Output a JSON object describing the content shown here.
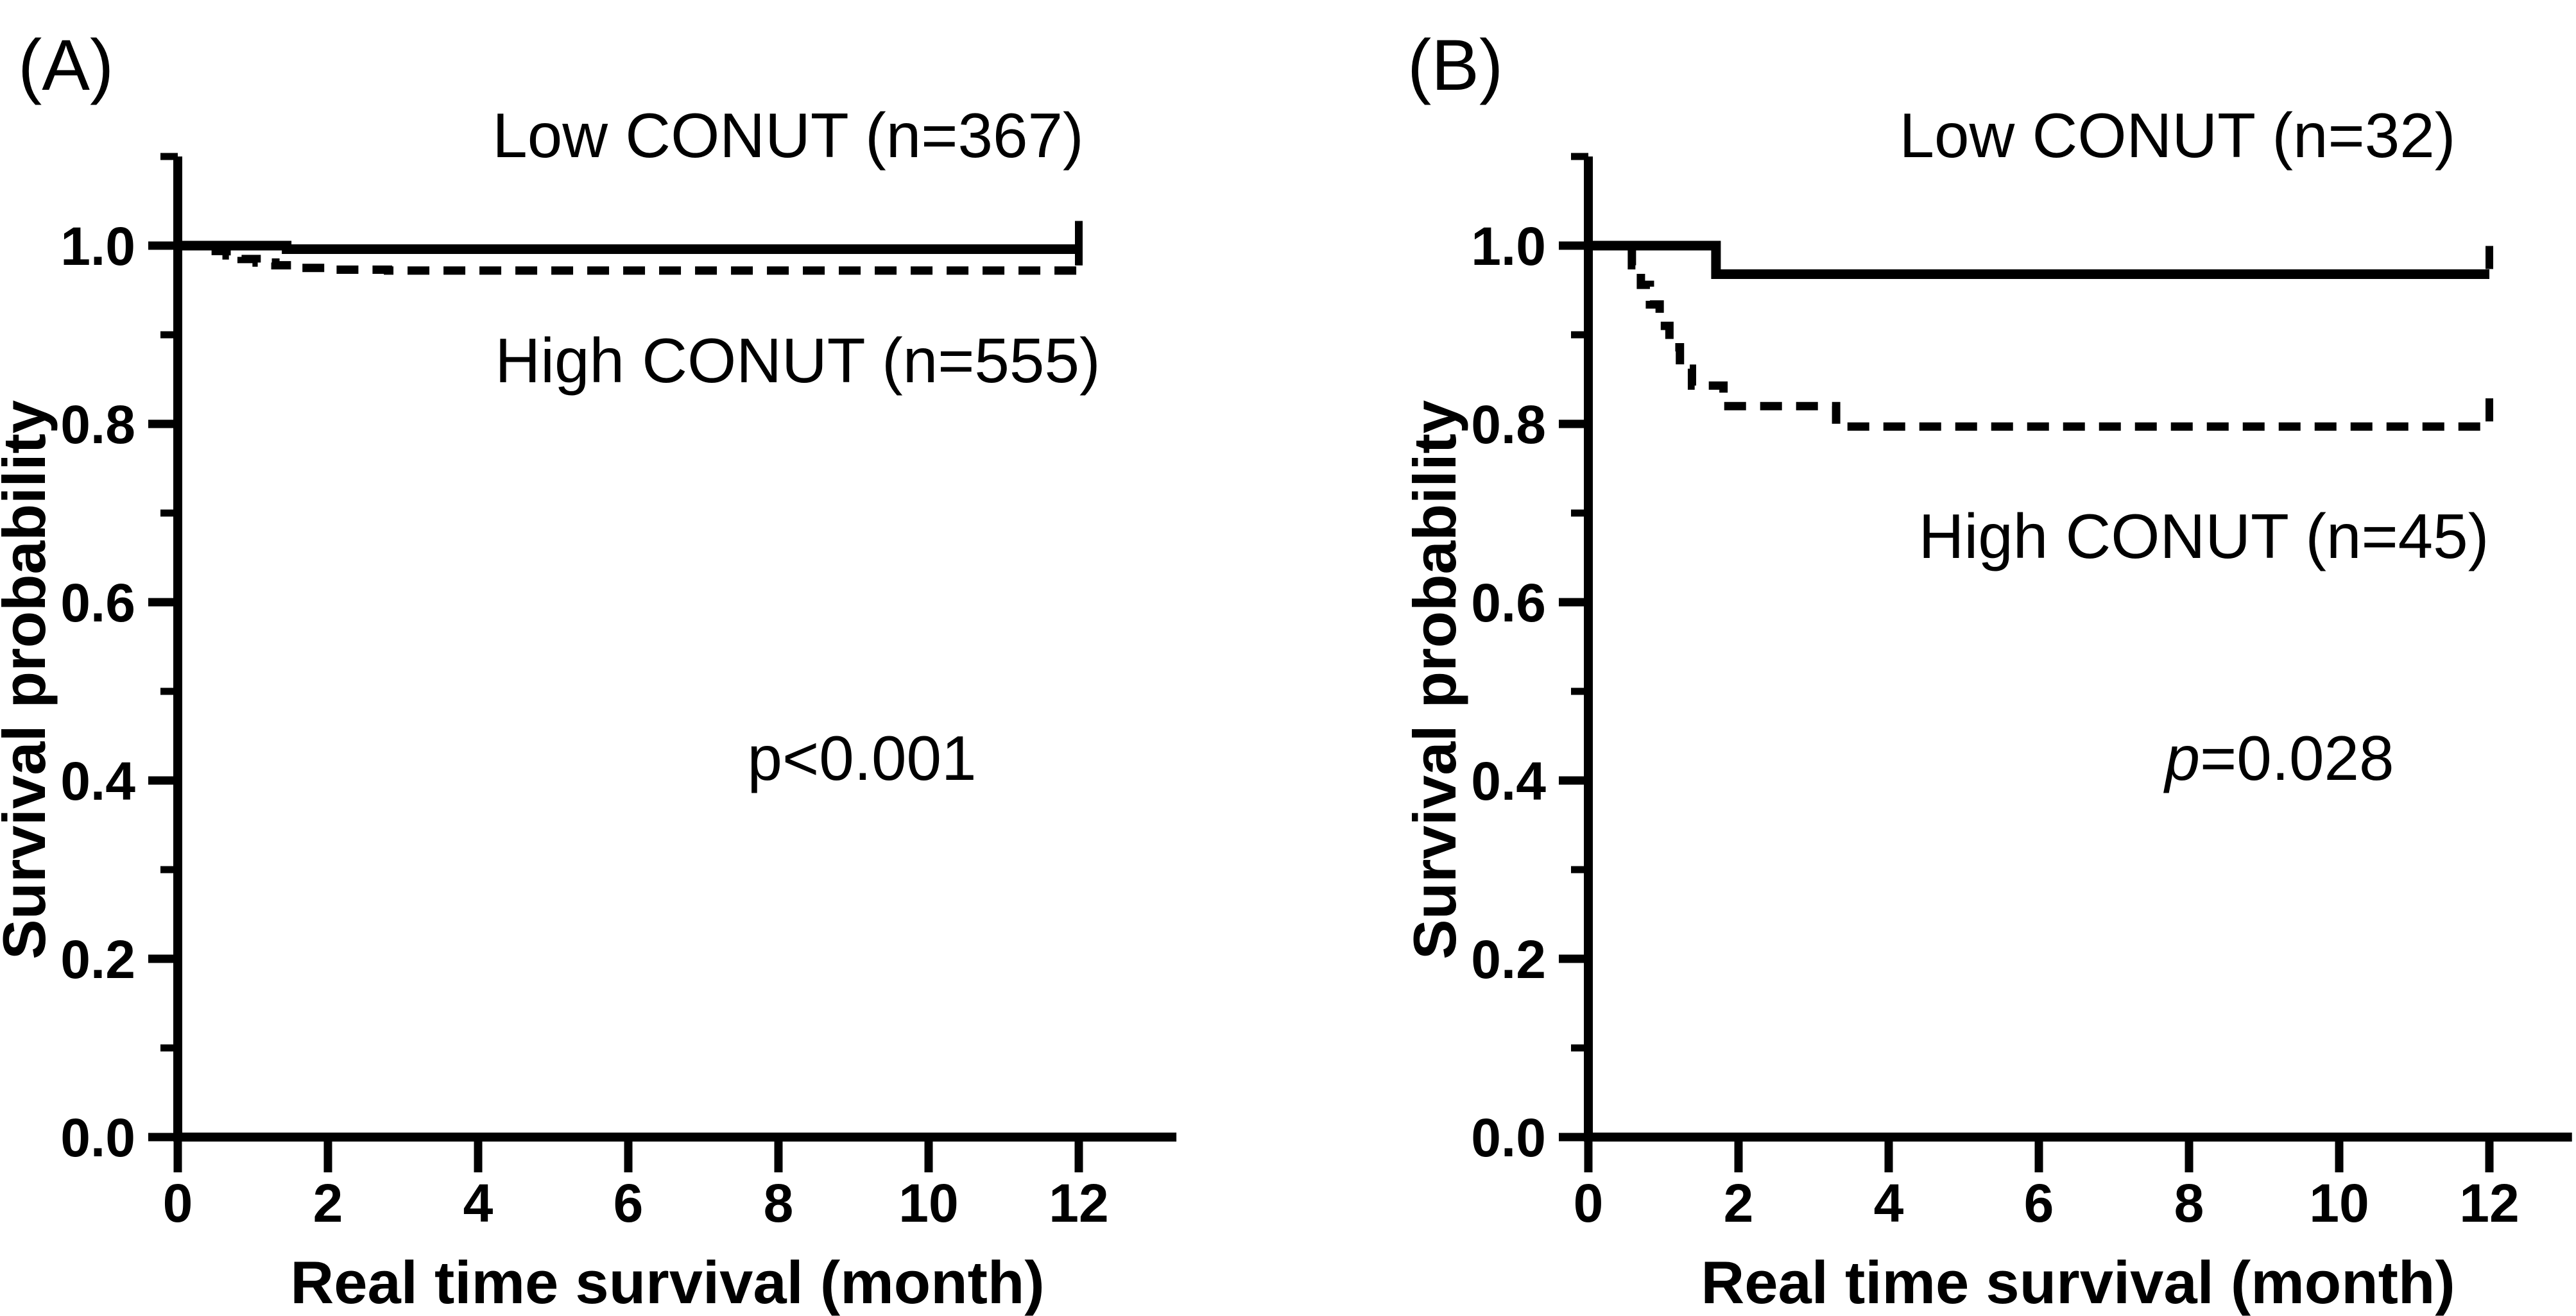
{
  "page": {
    "background_color": "#ffffff",
    "ink_color": "#000000"
  },
  "chart_data": [
    {
      "type": "line",
      "subtype": "kaplan-meier-step",
      "panel_label": "(A)",
      "xlabel": "Real time survival (month)",
      "ylabel": "Survival probability",
      "xlim": [
        0,
        13.3
      ],
      "ylim": [
        0,
        1.1
      ],
      "x_ticks": [
        0,
        2,
        4,
        6,
        8,
        10,
        12
      ],
      "y_ticks": [
        0.0,
        0.2,
        0.4,
        0.6,
        0.8,
        1.0
      ],
      "y_minor_ticks": [
        0.1,
        0.3,
        0.5,
        0.7,
        0.9,
        1.1
      ],
      "grid": false,
      "legend_position": "inline-annotations",
      "p_prefix": "p",
      "p_suffix": "<0.001",
      "series": [
        {
          "name": "Low CONUT (n=367)",
          "line_style": "solid",
          "color": "#000000",
          "steps": [
            [
              0,
              1.0
            ],
            [
              1.45,
              0.996
            ]
          ],
          "end_x": 12,
          "censor": [
            12,
            0.996
          ]
        },
        {
          "name": "High CONUT (n=555)",
          "line_style": "dashed",
          "color": "#000000",
          "steps": [
            [
              0.45,
              0.994
            ],
            [
              0.65,
              0.989
            ],
            [
              0.85,
              0.985
            ],
            [
              1.05,
              0.981
            ],
            [
              1.3,
              0.978
            ],
            [
              1.6,
              0.975
            ],
            [
              2.1,
              0.973
            ],
            [
              2.8,
              0.972
            ]
          ],
          "end_x": 12,
          "censor": [
            12,
            0.972
          ]
        }
      ]
    },
    {
      "type": "line",
      "subtype": "kaplan-meier-step",
      "panel_label": "(B)",
      "xlabel": "Real time survival (month)",
      "ylabel": "Survival probability",
      "xlim": [
        0,
        13.1
      ],
      "ylim": [
        0,
        1.1
      ],
      "x_ticks": [
        0,
        2,
        4,
        6,
        8,
        10,
        12
      ],
      "y_ticks": [
        0.0,
        0.2,
        0.4,
        0.6,
        0.8,
        1.0
      ],
      "y_minor_ticks": [
        0.1,
        0.3,
        0.5,
        0.7,
        0.9,
        1.1
      ],
      "grid": false,
      "legend_position": "inline-annotations",
      "p_prefix": "p",
      "p_suffix": "=0.028",
      "series": [
        {
          "name": "Low CONUT (n=32)",
          "line_style": "solid",
          "color": "#000000",
          "steps": [
            [
              0,
              1.0
            ],
            [
              1.7,
              0.968
            ]
          ],
          "end_x": 12,
          "censor": [
            12,
            0.968
          ]
        },
        {
          "name": "High CONUT (n=45)",
          "line_style": "dashed",
          "color": "#000000",
          "steps": [
            [
              0.55,
              0.996
            ],
            [
              0.58,
              0.978
            ],
            [
              0.7,
              0.956
            ],
            [
              0.82,
              0.934
            ],
            [
              0.95,
              0.91
            ],
            [
              1.08,
              0.886
            ],
            [
              1.22,
              0.862
            ],
            [
              1.38,
              0.843
            ],
            [
              1.8,
              0.82
            ],
            [
              3.3,
              0.797
            ]
          ],
          "end_x": 12,
          "censor": [
            12,
            0.797
          ]
        }
      ]
    }
  ]
}
